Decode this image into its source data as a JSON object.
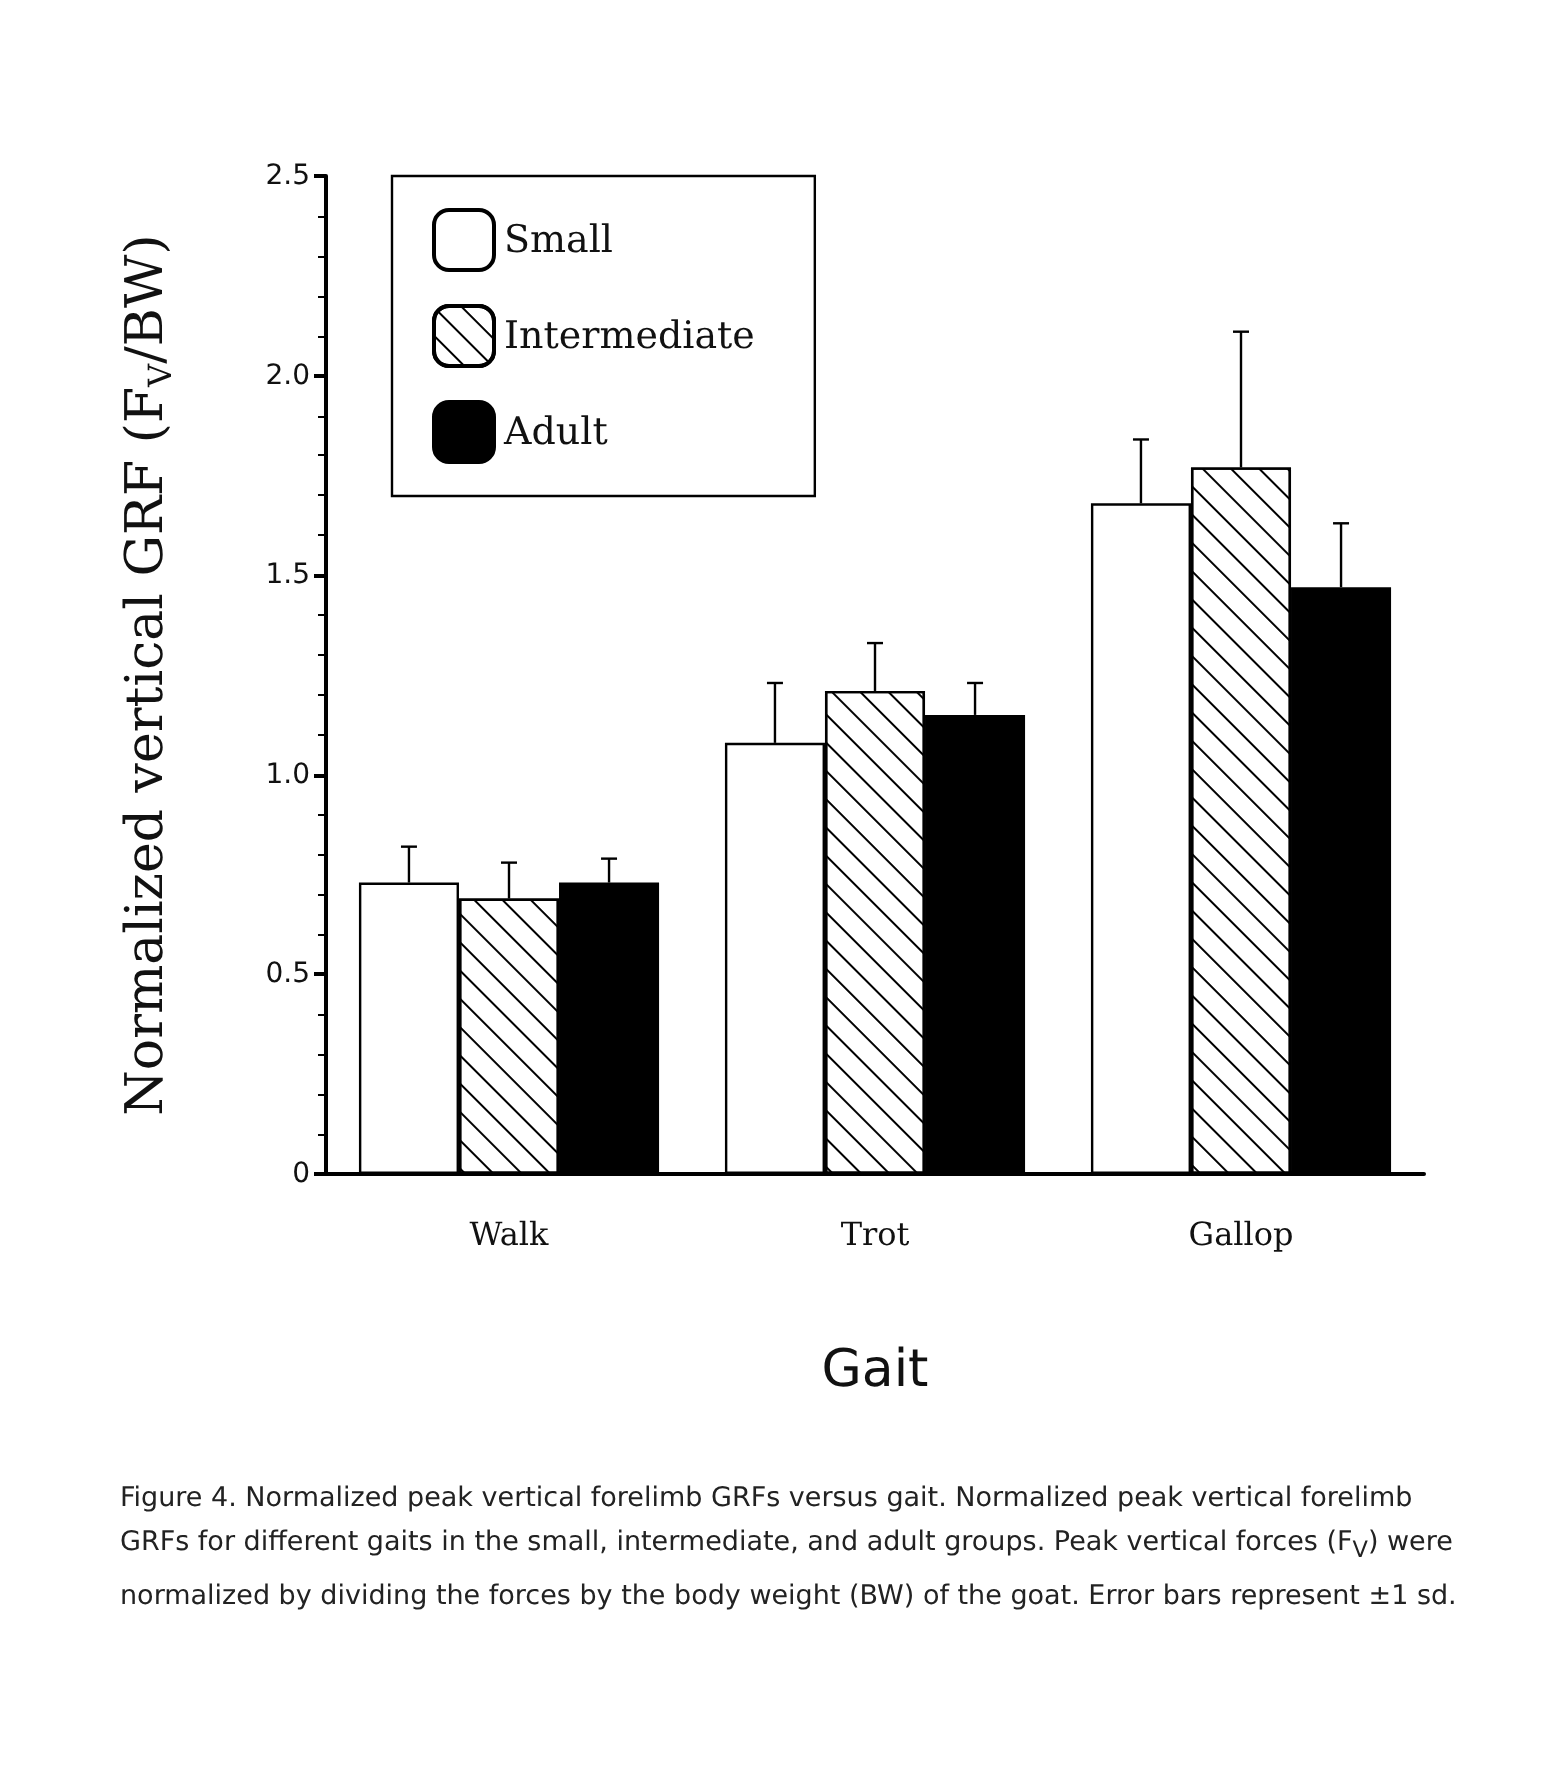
{
  "chart_data": {
    "type": "bar",
    "xlabel": "Gait",
    "ylabel": "Normalized vertical GRF (F$_{V}$/BW)",
    "categories": [
      "Walk",
      "Trot",
      "Gallop"
    ],
    "series": [
      {
        "name": "Small",
        "color": "#ffffff",
        "values": [
          0.73,
          1.08,
          1.68
        ],
        "errors": [
          [
            0.73,
            0.82
          ],
          [
            1.08,
            1.23
          ],
          [
            1.68,
            1.84
          ]
        ]
      },
      {
        "name": "Intermediate",
        "color": "#ffffff",
        "values": [
          0.69,
          1.21,
          1.77
        ],
        "errors": [
          [
            0.69,
            0.78
          ],
          [
            1.21,
            1.33
          ],
          [
            1.77,
            2.11
          ]
        ]
      },
      {
        "name": "Adult",
        "color": "#000000",
        "values": [
          0.73,
          1.15,
          1.47
        ],
        "errors": [
          [
            0.73,
            0.79
          ],
          [
            1.15,
            1.23
          ],
          [
            1.47,
            1.63
          ]
        ]
      }
    ],
    "ylim": [
      0,
      2.5
    ],
    "yticks": [
      0,
      0.5,
      {
        "value": 1,
        "label": "1.0"
      },
      1.5,
      {
        "value": 2,
        "label": "2.0"
      },
      2.5
    ],
    "grid": false,
    "legend": "top left",
    "annotations": [
      "Figure 4. Normalized peak vertical forelimb GRFs versus gait. Normalized peak vertical forelimb GRFs for different gaits in the small, intermediate, and adult groups. Peak vertical forces (F$_{V}$) were normalized by dividing the forces by the body weight (BW) of the goat. Error bars represent ±1 sd."
    ]
  }
}
